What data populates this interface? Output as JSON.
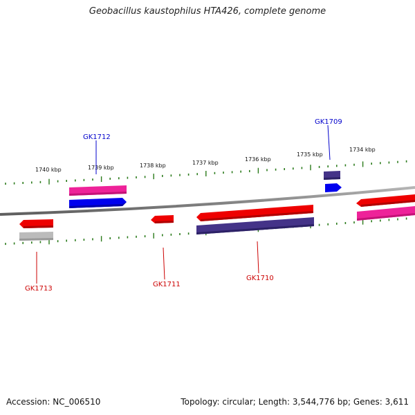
{
  "title": "Geobacillus kaustophilus HTA426, complete genome",
  "footer": {
    "accession": "Accession: NC_006510",
    "info": "Topology: circular; Length: 3,544,776 bp; Genes: 3,611"
  },
  "scale_labels": [
    "1740 kbp",
    "1739 kbp",
    "1738 kbp",
    "1737 kbp",
    "1736 kbp",
    "1735 kbp",
    "1734 kbp"
  ],
  "gene_labels": {
    "gk1712": "GK1712",
    "gk1709": "GK1709",
    "gk1713": "GK1713",
    "gk1711": "GK1711",
    "gk1710": "GK1710"
  },
  "colors": {
    "forward_label": "#0000cc",
    "reverse_label": "#cc0000",
    "tick": "#2a7a1a",
    "backbone": "#888888",
    "red_gene": "#ee0000",
    "pink_gene": "#ee2299",
    "blue_gene": "#0000ee",
    "purple_gene": "#443388",
    "grey_gene": "#bbbbbb"
  }
}
